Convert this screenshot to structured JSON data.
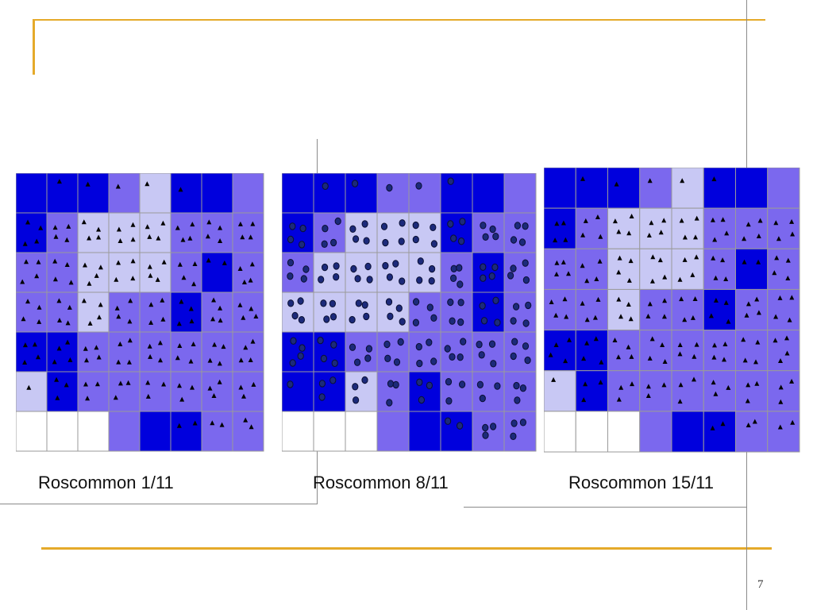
{
  "slide": {
    "page_number": "7"
  },
  "colors": {
    "dark": "#0000dd",
    "medium": "#7b68ee",
    "light": "#c8c8f4",
    "white": "#ffffff",
    "accent_line": "#e5aa2a"
  },
  "panels": [
    {
      "caption": "Roscommon 1/11",
      "marker": "triangle",
      "grid": [
        "DDDMLDDM",
        "DMLLLMMM",
        "MMLLLMDM",
        "MMLMMDMM",
        "DDMMMMMM",
        "LDMMMMMM",
        "WWWMDDMM"
      ]
    },
    {
      "caption": "Roscommon 8/11",
      "marker": "circle",
      "grid": [
        "DDDMMDDM",
        "DMLLLDMM",
        "MLLLLMDM",
        "LLLLMMDM",
        "DDMMMMMM",
        "DDLMDMMM",
        "WWWMDDMM"
      ]
    },
    {
      "caption": "Roscommon 15/11",
      "marker": "triangle",
      "grid": [
        "DDDMLDDM",
        "DMLLLMMM",
        "MMLLLMDM",
        "MMLMMDMM",
        "DDMMMMMM",
        "LDMMMMMM",
        "WWWMDDMM"
      ]
    }
  ]
}
